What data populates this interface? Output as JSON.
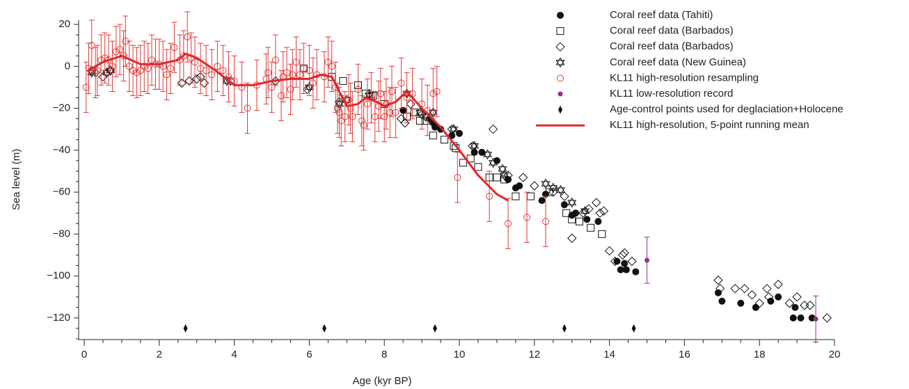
{
  "chart_data": {
    "type": "scatter",
    "xlabel": "Age (kyr BP)",
    "ylabel": "Sea level (m)",
    "xlim": [
      0,
      20
    ],
    "ylim": [
      -130,
      22
    ],
    "xticks": [
      0,
      2,
      4,
      6,
      8,
      10,
      12,
      14,
      16,
      18,
      20
    ],
    "yticks": [
      {
        "value": -120,
        "label": "−120"
      },
      {
        "value": -100,
        "label": "−100"
      },
      {
        "value": -80,
        "label": "−80"
      },
      {
        "value": -60,
        "label": "−60"
      },
      {
        "value": -40,
        "label": "−40"
      },
      {
        "value": -20,
        "label": "−20"
      },
      0,
      20
    ],
    "xminorticks": [
      0.5,
      1,
      1.5,
      2.5,
      3,
      3.5,
      4.5,
      5,
      5.5,
      6.5,
      7,
      7.5,
      8.5,
      9,
      9.5,
      10.5,
      11,
      11.5,
      12.5,
      13,
      13.5,
      14.5,
      15,
      15.5,
      16.5,
      17,
      17.5,
      18.5,
      19,
      19.5
    ],
    "yminorticks": [
      -130,
      -125,
      -115,
      -110,
      -105,
      -95,
      -90,
      -85,
      -75,
      -70,
      -65,
      -55,
      -50,
      -45,
      -35,
      -30,
      -25,
      -15,
      -10,
      -5,
      5,
      10,
      15
    ],
    "legend": "top-right",
    "series": [
      {
        "name": "Coral reef data (Tahiti)",
        "marker": "circle-filled",
        "color": "#111111",
        "x": [
          8.5,
          9.2,
          9.3,
          9.35,
          9.5,
          9.8,
          10.0,
          10.4,
          10.6,
          11.0,
          11.3,
          11.5,
          11.6,
          12.2,
          12.3,
          12.8,
          13.0,
          13.1,
          13.4,
          13.7,
          14.2,
          14.3,
          14.4,
          14.45,
          14.7,
          16.9,
          17.0,
          17.5,
          17.9,
          18.3,
          18.5,
          18.9,
          18.95,
          19.1,
          19.4
        ],
        "values": [
          -21,
          -25,
          -27,
          -29,
          -30,
          -33,
          -32,
          -41,
          -41,
          -45,
          -54,
          -58,
          -57,
          -64,
          -61,
          -66,
          -71,
          -70,
          -73,
          -74,
          -93,
          -97,
          -94,
          -97,
          -98,
          -108,
          -112,
          -113,
          -115,
          -112,
          -110,
          -120,
          -115,
          -120,
          -120
        ]
      },
      {
        "name": "Coral reef data (Barbados)",
        "marker": "square",
        "color": "#111111",
        "x": [
          5.85,
          6.6,
          6.9,
          7.3,
          7.5,
          7.7,
          8.0,
          8.6,
          8.8,
          8.95,
          9.1,
          9.3,
          9.6,
          9.85,
          9.9,
          10.1,
          10.3,
          10.5,
          10.8,
          11.0,
          11.2,
          11.5,
          11.9,
          12.4,
          12.85,
          13.0,
          13.2,
          13.5,
          13.8
        ],
        "values": [
          -1,
          -5,
          -7,
          -9,
          -13,
          -14,
          -18,
          -24,
          -22,
          -26,
          -26,
          -33,
          -35,
          -38,
          -39,
          -46,
          -44,
          -48,
          -53,
          -53,
          -54,
          -62,
          -62,
          -60,
          -70,
          -73,
          -74,
          -77,
          -80
        ]
      },
      {
        "name": "Coral reef data (Barbados)",
        "marker": "diamond",
        "color": "#111111",
        "x": [
          0.2,
          0.3,
          0.5,
          0.7,
          2.6,
          2.8,
          3.0,
          3.1,
          3.2,
          3.9,
          5.1,
          5.95,
          6.8,
          7.6,
          8.45,
          8.55,
          8.7,
          9.0,
          9.8,
          10.35,
          10.9,
          11.3,
          11.7,
          12.0,
          12.5,
          12.8,
          13.0,
          13.3,
          13.45,
          13.65,
          13.75,
          13.85,
          14.0,
          14.15,
          14.35,
          14.4,
          14.6,
          16.9,
          16.95,
          17.35,
          17.6,
          17.8,
          18.0,
          18.2,
          18.25,
          18.5,
          18.8,
          19.0,
          19.2,
          19.35,
          19.8
        ],
        "values": [
          -2,
          -3,
          -5,
          -2,
          -8,
          -7,
          -6,
          -5,
          -8,
          -7,
          -7,
          -11,
          -17,
          -13,
          -25,
          -27,
          -18,
          -23,
          -30,
          -38,
          -30,
          -52,
          -53,
          -57,
          -60,
          -62,
          -82,
          -70,
          -68,
          -65,
          -70,
          -69,
          -88,
          -93,
          -90,
          -89,
          -93,
          -102,
          -106,
          -106,
          -106,
          -109,
          -113,
          -106,
          -110,
          -104,
          -113,
          -110,
          -114,
          -114,
          -120
        ]
      },
      {
        "name": "Coral reef data (New Guinea)",
        "marker": "star6",
        "color": "#111111",
        "x": [
          0.2,
          0.6,
          0.7,
          3.8,
          6.0,
          6.8,
          7.0,
          7.6,
          8.6,
          8.95,
          9.1,
          9.3,
          9.85,
          10.4,
          10.75,
          10.9,
          11.15,
          11.2,
          12.3,
          12.5,
          12.7,
          13.0,
          13.35
        ],
        "values": [
          -3,
          -3,
          -2,
          -7,
          -10,
          -18,
          -16,
          -14,
          -13,
          -22,
          -24,
          -22,
          -30,
          -38,
          -42,
          -46,
          -49,
          -52,
          -56,
          -58,
          -59,
          -65,
          -69
        ]
      },
      {
        "name": "KL11 high-resolution resampling",
        "marker": "circle-open",
        "color": "#e0393a",
        "x": [
          0.05,
          0.12,
          0.2,
          0.3,
          0.35,
          0.45,
          0.55,
          0.65,
          0.75,
          0.85,
          0.95,
          1.05,
          1.1,
          1.2,
          1.3,
          1.4,
          1.5,
          1.6,
          1.7,
          1.8,
          1.9,
          2.0,
          2.1,
          2.2,
          2.3,
          2.4,
          2.55,
          2.65,
          2.75,
          2.85,
          2.95,
          3.1,
          3.25,
          3.4,
          3.55,
          3.7,
          3.85,
          4.0,
          4.2,
          4.35,
          4.6,
          4.85,
          4.9,
          5.0,
          5.1,
          5.25,
          5.3,
          5.4,
          5.5,
          5.55,
          5.65,
          5.75,
          5.85,
          6.0,
          6.1,
          6.2,
          6.4,
          6.5,
          6.6,
          6.7,
          6.75,
          6.8,
          6.85,
          6.95,
          7.05,
          7.1,
          7.15,
          7.3,
          7.4,
          7.45,
          7.55,
          7.65,
          7.75,
          7.85,
          7.9,
          8.0,
          8.05,
          8.15,
          8.2,
          8.3,
          8.45,
          8.6,
          8.75,
          9.0,
          9.15,
          9.3,
          9.4,
          9.95,
          10.8,
          11.3,
          11.8,
          12.3
        ],
        "values": [
          -10,
          -1,
          10,
          -3,
          -2,
          3,
          4,
          3,
          0,
          7,
          8,
          5,
          12,
          0,
          -2,
          -3,
          -2,
          0,
          -1,
          3,
          1,
          1,
          0,
          -4,
          -1,
          9,
          3,
          5,
          14,
          4,
          2,
          -1,
          -2,
          -4,
          0,
          -2,
          -5,
          -7,
          -10,
          -20,
          -9,
          -6,
          -3,
          -10,
          3,
          -14,
          -5,
          -3,
          -11,
          -4,
          2,
          -4,
          -1,
          -2,
          -8,
          -4,
          -5,
          2,
          0,
          -10,
          -20,
          -22,
          -26,
          -24,
          -16,
          -20,
          -24,
          -11,
          -26,
          -28,
          -18,
          -15,
          -24,
          -19,
          -13,
          -24,
          -18,
          -22,
          -12,
          -22,
          -8,
          -15,
          -13,
          -18,
          -21,
          -13,
          -12,
          -53,
          -62,
          -75,
          -72,
          -74
        ],
        "errors": [
          12,
          12,
          12,
          12,
          12,
          12,
          12,
          12,
          12,
          12,
          12,
          12,
          12,
          12,
          12,
          12,
          12,
          12,
          12,
          12,
          12,
          12,
          12,
          12,
          12,
          12,
          12,
          12,
          12,
          12,
          12,
          12,
          12,
          12,
          12,
          12,
          12,
          12,
          12,
          12,
          12,
          12,
          12,
          12,
          12,
          12,
          12,
          12,
          12,
          12,
          12,
          12,
          12,
          12,
          12,
          12,
          12,
          12,
          12,
          12,
          12,
          12,
          12,
          12,
          12,
          12,
          12,
          12,
          12,
          12,
          12,
          12,
          12,
          12,
          12,
          12,
          12,
          12,
          12,
          12,
          12,
          12,
          12,
          12,
          12,
          12,
          12,
          12,
          12,
          12,
          12,
          12
        ]
      },
      {
        "name": "KL11 low-resolution record",
        "marker": "dot",
        "color": "#9b2a8c",
        "x": [
          15.0,
          19.5
        ],
        "values": [
          -92.5,
          -120.5
        ],
        "errors": [
          11,
          11
        ]
      },
      {
        "name": "Age-control points used for deglaciation+Holocene",
        "marker": "thin-diamond",
        "color": "#111111",
        "x": [
          2.7,
          6.4,
          9.35,
          12.8,
          14.65
        ],
        "values": [
          -125,
          -125,
          -125,
          -125,
          -125
        ]
      },
      {
        "name": "KL11 high-resolution, 5-point running mean",
        "marker": "line",
        "color": "#e0262a",
        "x": [
          0.1,
          0.5,
          1.0,
          1.5,
          2.0,
          2.5,
          2.7,
          3.0,
          3.5,
          4.0,
          4.5,
          5.0,
          5.5,
          6.0,
          6.3,
          6.6,
          6.8,
          7.0,
          7.3,
          7.5,
          7.8,
          8.0,
          8.3,
          8.6,
          9.0,
          9.5,
          10.0,
          10.5,
          11.0,
          11.3
        ],
        "values": [
          -2,
          2,
          5,
          1,
          1,
          3,
          6,
          4,
          -2,
          -9,
          -9,
          -7,
          -6,
          -6,
          -4,
          -5,
          -12,
          -19,
          -18,
          -15,
          -17,
          -19,
          -17,
          -12,
          -20,
          -29,
          -40,
          -52,
          -61,
          -64
        ]
      }
    ]
  }
}
